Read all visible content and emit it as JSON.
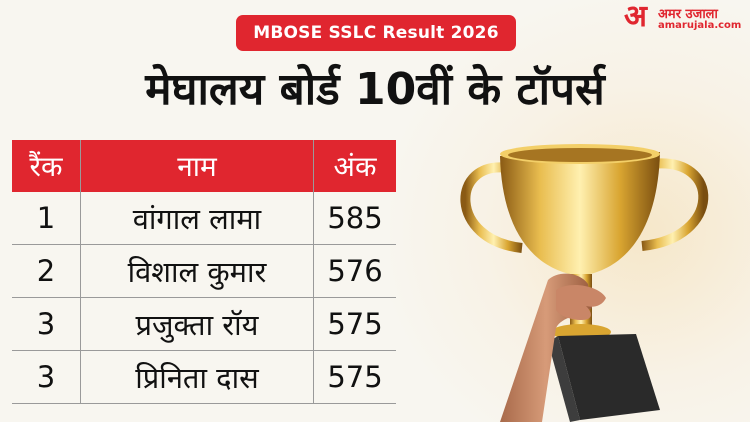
{
  "header": {
    "badge": "MBOSE SSLC Result 2026"
  },
  "logo": {
    "mark": "अ",
    "name": "अमर उजाला",
    "url": "amarujala.com"
  },
  "title": "मेघालय बोर्ड 10वीं के टॉपर्स",
  "table": {
    "columns": [
      "रैंक",
      "नाम",
      "अंक"
    ],
    "rows": [
      {
        "rank": "1",
        "name": "वांगाल लामा",
        "marks": "585"
      },
      {
        "rank": "2",
        "name": "विशाल कुमार",
        "marks": "576"
      },
      {
        "rank": "3",
        "name": "प्रजुक्ता रॉय",
        "marks": "575"
      },
      {
        "rank": "3",
        "name": "प्रिनिता दास",
        "marks": "575"
      }
    ]
  },
  "colors": {
    "accent": "#e0262f",
    "text": "#111111",
    "background": "#f8f6f0",
    "gold": "#d9a531"
  },
  "image": {
    "subject": "trophy-in-hand"
  }
}
